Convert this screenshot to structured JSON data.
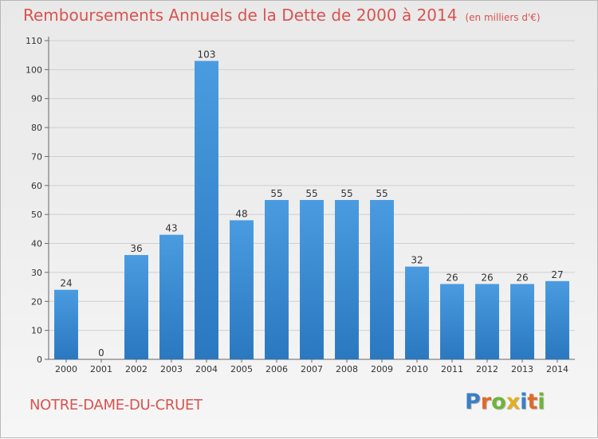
{
  "title": "Remboursements Annuels de la Dette de 2000 à 2014",
  "unit": "(en milliers d'€)",
  "commune": "NOTRE-DAME-DU-CRUET",
  "logo": {
    "text": "Proxiti",
    "letters": [
      {
        "char": "P",
        "color": "#3a7fc4"
      },
      {
        "char": "r",
        "color": "#e06a2a"
      },
      {
        "char": "o",
        "color": "#6fb43a"
      },
      {
        "char": "x",
        "color": "#e0b020"
      },
      {
        "char": "i",
        "color": "#3a7fc4"
      },
      {
        "char": "t",
        "color": "#e06a2a"
      },
      {
        "char": "i",
        "color": "#6fb43a"
      }
    ]
  },
  "chart_data": {
    "type": "bar",
    "categories": [
      "2000",
      "2001",
      "2002",
      "2003",
      "2004",
      "2005",
      "2006",
      "2007",
      "2008",
      "2009",
      "2010",
      "2011",
      "2012",
      "2013",
      "2014"
    ],
    "values": [
      24,
      0,
      36,
      43,
      103,
      48,
      55,
      55,
      55,
      55,
      32,
      26,
      26,
      26,
      27
    ],
    "ylim": [
      0,
      110
    ],
    "yticks": [
      0,
      10,
      20,
      30,
      40,
      50,
      60,
      70,
      80,
      90,
      100,
      110
    ],
    "grid": true,
    "bar_color": "#4a9be0",
    "bar_color_dark": "#2a78c0"
  }
}
